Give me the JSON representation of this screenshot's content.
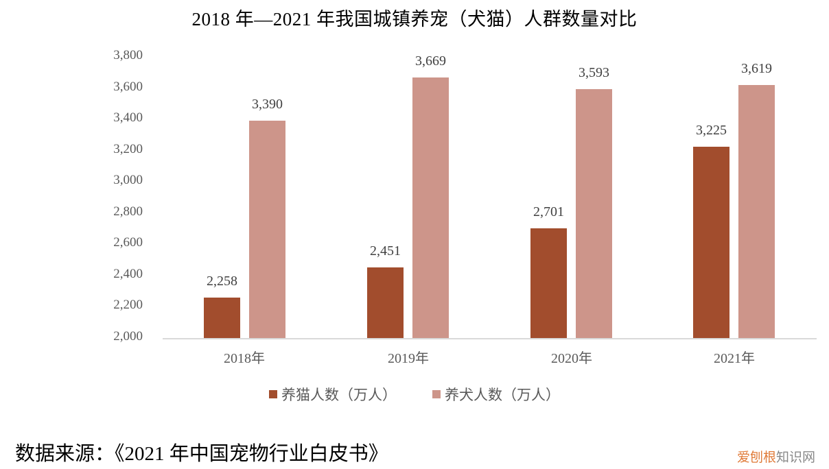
{
  "title": "2018 年—2021 年我国城镇养宠（犬猫）人群数量对比",
  "source": "数据来源：《2021 年中国宠物行业白皮书》",
  "watermark": {
    "part1": "爱刨根",
    "part2": "知识网"
  },
  "colors": {
    "cat": "#a24d2d",
    "dog": "#cd958a",
    "axis": "#d9d9d9",
    "tick_text": "#595959"
  },
  "chart_data": {
    "type": "bar",
    "title": "2018 年—2021 年我国城镇养宠（犬猫）人群数量对比",
    "xlabel": "",
    "ylabel": "",
    "categories": [
      "2018年",
      "2019年",
      "2020年",
      "2021年"
    ],
    "series": [
      {
        "name": "养猫人数（万人）",
        "values": [
          2258,
          2451,
          2701,
          3225
        ],
        "labels": [
          "2,258",
          "2,451",
          "2,701",
          "3,225"
        ]
      },
      {
        "name": "养犬人数（万人）",
        "values": [
          3390,
          3669,
          3593,
          3619
        ],
        "labels": [
          "3,390",
          "3,669",
          "3,593",
          "3,619"
        ]
      }
    ],
    "ylim": [
      2000,
      3800
    ],
    "yticks": [
      "3,800",
      "3,600",
      "3,400",
      "3,200",
      "3,000",
      "2,800",
      "2,600",
      "2,400",
      "2,200",
      "2,000"
    ],
    "grid": false,
    "legend_position": "bottom"
  }
}
